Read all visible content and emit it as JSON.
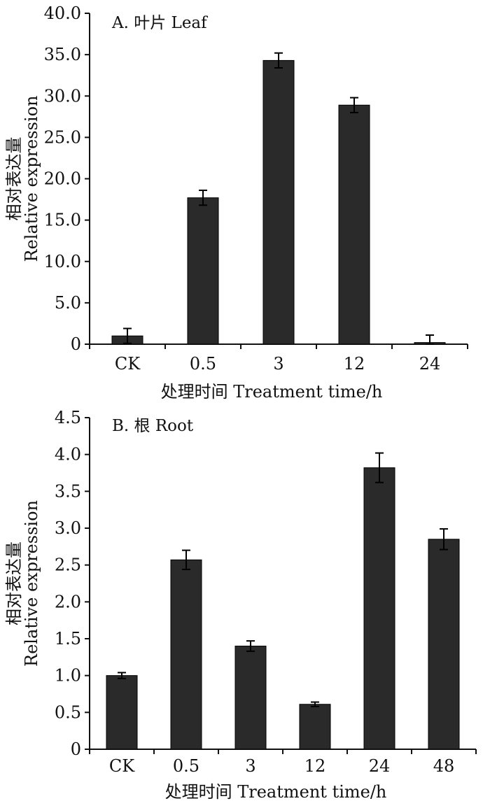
{
  "chart_data": [
    {
      "type": "bar",
      "panel_title": "A. 叶片  Leaf",
      "xlabel": "处理时间 Treatment time/h",
      "ylabel_cn": "相对表达量",
      "ylabel_en": "Relative expression",
      "categories": [
        "CK",
        "0.5",
        "3",
        "12",
        "24"
      ],
      "values": [
        1.0,
        17.7,
        34.3,
        28.9,
        0.2
      ],
      "errors": [
        0.9,
        0.9,
        0.9,
        0.9,
        0.9
      ],
      "ylim": [
        0,
        40
      ],
      "yticks": [
        "0",
        "5.0",
        "10.0",
        "15.0",
        "20.0",
        "25.0",
        "30.0",
        "35.0",
        "40.0"
      ],
      "ytick_values": [
        0,
        5,
        10,
        15,
        20,
        25,
        30,
        35,
        40
      ],
      "bar_color": "#2a2a2a"
    },
    {
      "type": "bar",
      "panel_title": "B. 根  Root",
      "xlabel": "处理时间 Treatment time/h",
      "ylabel_cn": "相对表达量",
      "ylabel_en": "Relative expression",
      "categories": [
        "CK",
        "0.5",
        "3",
        "12",
        "24",
        "48"
      ],
      "values": [
        1.0,
        2.57,
        1.4,
        0.61,
        3.82,
        2.85
      ],
      "errors": [
        0.04,
        0.13,
        0.07,
        0.03,
        0.2,
        0.14
      ],
      "ylim": [
        0,
        4.5
      ],
      "yticks": [
        "0",
        "0.5",
        "1.0",
        "1.5",
        "2.0",
        "2.5",
        "3.0",
        "3.5",
        "4.0",
        "4.5"
      ],
      "ytick_values": [
        0,
        0.5,
        1.0,
        1.5,
        2.0,
        2.5,
        3.0,
        3.5,
        4.0,
        4.5
      ],
      "bar_color": "#2a2a2a"
    }
  ]
}
